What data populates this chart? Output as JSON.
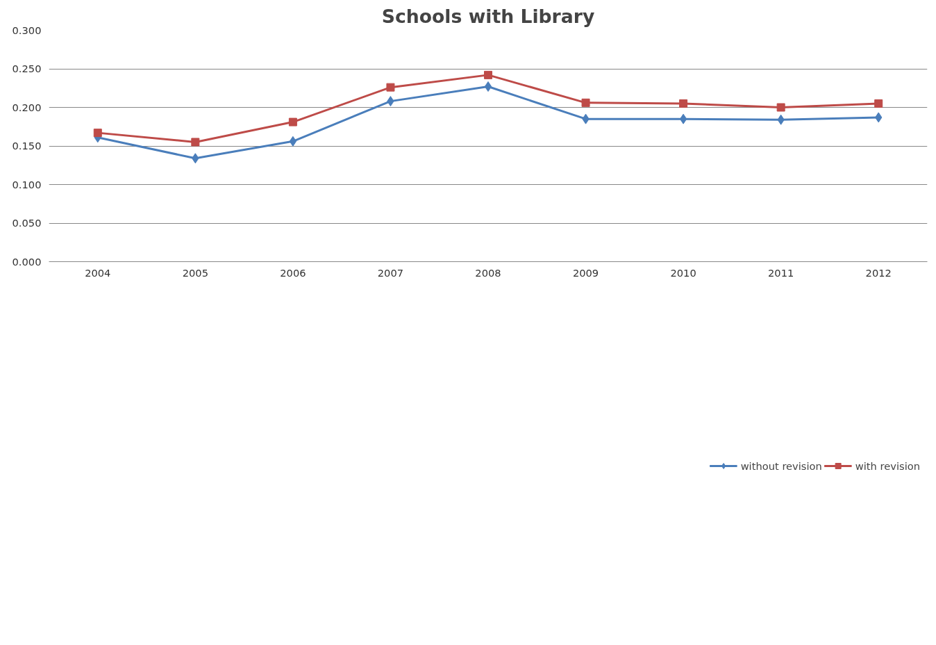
{
  "chart_data": {
    "type": "line",
    "title": "Schools with Library",
    "categories": [
      "2004",
      "2005",
      "2006",
      "2007",
      "2008",
      "2009",
      "2010",
      "2011",
      "2012"
    ],
    "series": [
      {
        "name": "without revision",
        "color": "#4a7ebb",
        "marker": "diamond",
        "values": [
          0.161,
          0.134,
          0.156,
          0.208,
          0.227,
          0.185,
          0.185,
          0.184,
          0.187
        ]
      },
      {
        "name": "with revision",
        "color": "#be4b48",
        "marker": "square",
        "values": [
          0.167,
          0.155,
          0.181,
          0.226,
          0.242,
          0.206,
          0.205,
          0.2,
          0.205
        ]
      }
    ],
    "ylim": [
      0,
      0.3
    ],
    "yticks": [
      {
        "value": 0,
        "label": "0.000"
      },
      {
        "value": 0.05,
        "label": "0.050"
      },
      {
        "value": 0.1,
        "label": "0.100"
      },
      {
        "value": 0.15,
        "label": "0.150"
      },
      {
        "value": 0.2,
        "label": "0.200"
      },
      {
        "value": 0.25,
        "label": "0.250"
      },
      {
        "value": 0.3,
        "label": "0.300"
      }
    ],
    "grid": "y",
    "legend": "bottom",
    "line_style": "solid"
  }
}
